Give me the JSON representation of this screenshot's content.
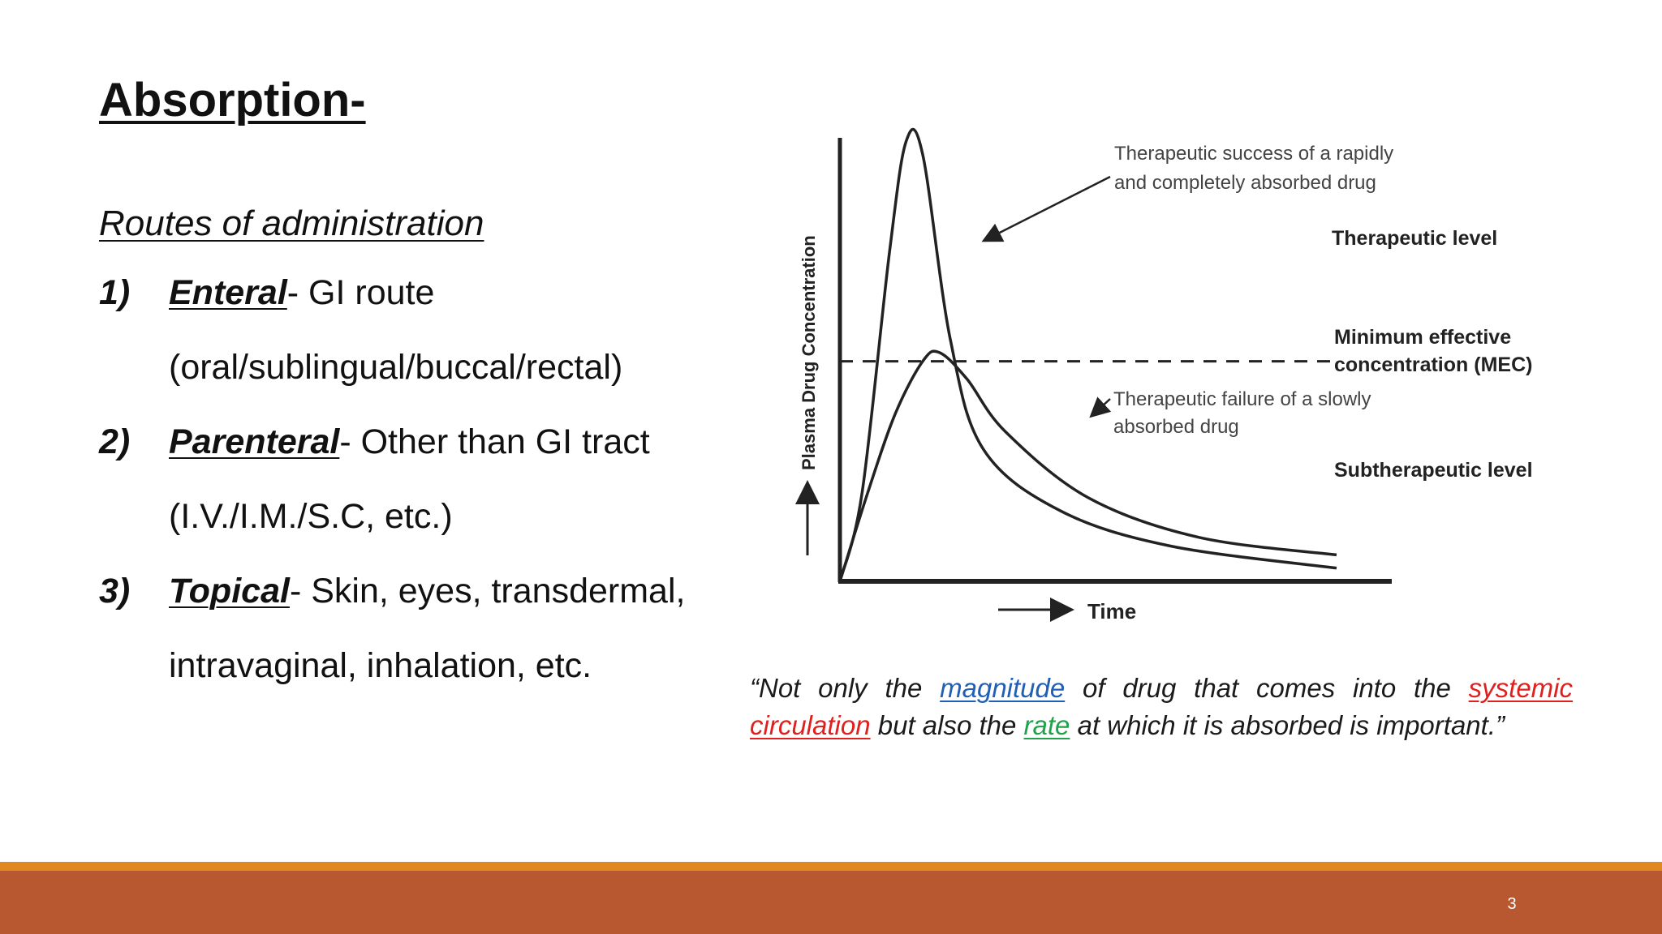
{
  "slide": {
    "title": "Absorption-",
    "subtitle": "Routes of administration",
    "routes": [
      {
        "number": "1)",
        "name": "Enteral",
        "desc": "- GI route",
        "detail": "(oral/sublingual/buccal/rectal)"
      },
      {
        "number": "2)",
        "name": "Parenteral",
        "desc": "- Other than GI tract",
        "detail": "(I.V./I.M./S.C, etc.)"
      },
      {
        "number": "3)",
        "name": "Topical",
        "desc": "- Skin, eyes, transdermal,",
        "detail": "intravaginal, inhalation, etc."
      }
    ],
    "quote": {
      "part1": "“Not only the ",
      "magnitude": "magnitude",
      "part2": " of drug that comes into the ",
      "systemic_circulation": "systemic circulation",
      "part3": " but also the ",
      "rate": "rate",
      "part4": " at which it is absorbed is important.”"
    },
    "page_number": "3",
    "colors": {
      "magnitude": "#1f5fb5",
      "systemic_circulation": "#e0201e",
      "rate": "#1fa24a",
      "footer_bar": "#b85830",
      "footer_stripe": "#e1881f"
    }
  },
  "chart_data": {
    "type": "line",
    "xlabel": "Time",
    "ylabel": "Plasma Drug Concentration",
    "reference_line": {
      "label_line1": "Minimum effective",
      "label_line2": "concentration (MEC)",
      "style": "dashed"
    },
    "region_labels": {
      "above": "Therapeutic level",
      "below": "Subtherapeutic level"
    },
    "annotations": [
      {
        "line1": "Therapeutic success of a rapidly",
        "line2": "and completely absorbed drug"
      },
      {
        "line1": "Therapeutic failure of a slowly",
        "line2": "absorbed drug"
      }
    ],
    "series": [
      {
        "points": [
          [
            0,
            0
          ],
          [
            0.04,
            0.2
          ],
          [
            0.09,
            0.75
          ],
          [
            0.12,
            1.0
          ],
          [
            0.15,
            0.97
          ],
          [
            0.2,
            0.55
          ],
          [
            0.26,
            0.3
          ],
          [
            0.4,
            0.16
          ],
          [
            0.6,
            0.08
          ],
          [
            0.9,
            0.03
          ]
        ]
      },
      {
        "points": [
          [
            0,
            0
          ],
          [
            0.05,
            0.2
          ],
          [
            0.1,
            0.38
          ],
          [
            0.15,
            0.5
          ],
          [
            0.18,
            0.52
          ],
          [
            0.23,
            0.46
          ],
          [
            0.3,
            0.34
          ],
          [
            0.45,
            0.19
          ],
          [
            0.65,
            0.1
          ],
          [
            0.9,
            0.06
          ]
        ]
      }
    ],
    "mec_level": 0.5,
    "xlim": [
      0,
      1
    ],
    "ylim": [
      0,
      1.1
    ]
  }
}
